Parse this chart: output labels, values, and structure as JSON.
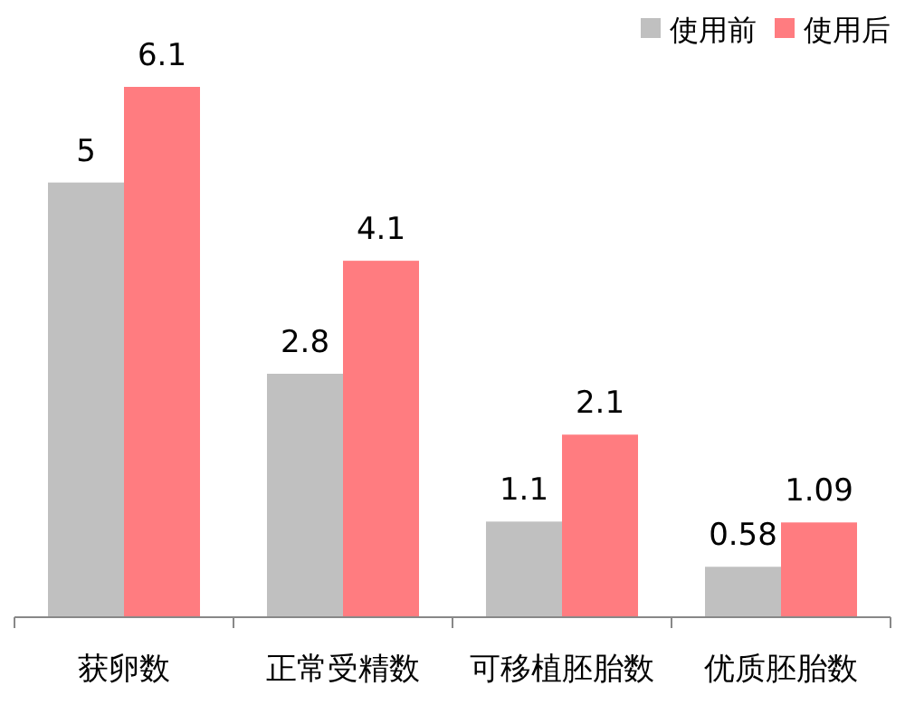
{
  "chart_data": {
    "type": "bar",
    "categories": [
      "获卵数",
      "正常受精数",
      "可移植胚胎数",
      "优质胚胎数"
    ],
    "series": [
      {
        "name": "使用前",
        "color": "#c0c0c0",
        "values": [
          5,
          2.8,
          1.1,
          0.58
        ]
      },
      {
        "name": "使用后",
        "color": "#ff7c80",
        "values": [
          6.1,
          4.1,
          2.1,
          1.09
        ]
      }
    ],
    "data_labels": true,
    "legend": "top right",
    "relative": false
  }
}
